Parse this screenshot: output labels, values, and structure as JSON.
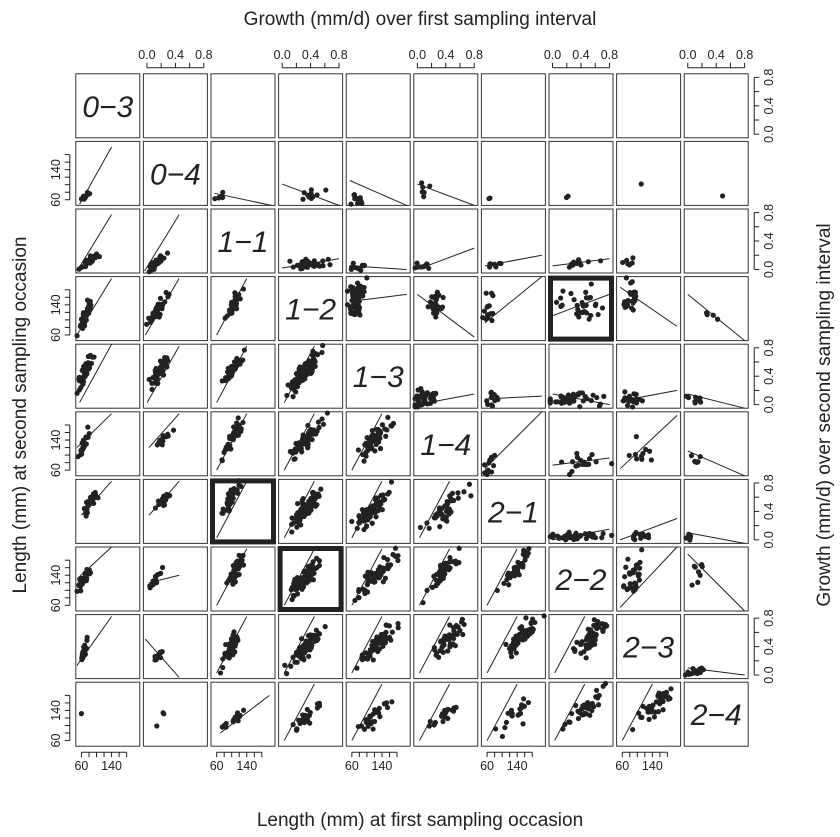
{
  "chart_data": {
    "type": "scatter",
    "title": "",
    "top_axis_title": "Growth (mm/d) over first sampling interval",
    "bottom_axis_title": "Length (mm) at first sampling occasion",
    "left_axis_title": "Length (mm) at second sampling occasion",
    "right_axis_title": "Growth (mm/d) over second sampling interval",
    "groups": [
      "0−3",
      "0−4",
      "1−1",
      "1−2",
      "1−3",
      "1−4",
      "2−1",
      "2−2",
      "2−3",
      "2−4"
    ],
    "length_axis": {
      "range": [
        45,
        215
      ],
      "ticks": [
        60,
        80,
        100,
        120,
        140,
        160,
        180
      ],
      "tick_labels": [
        "60",
        "140"
      ]
    },
    "growth_axis": {
      "range": [
        -0.05,
        0.85
      ],
      "ticks": [
        0.0,
        0.2,
        0.4,
        0.6,
        0.8
      ],
      "tick_labels": [
        "0.0",
        "0.4",
        "0.8"
      ]
    },
    "lower_triangle": "length at second occasion vs length at first occasion",
    "upper_triangle": "growth over second interval vs growth over first interval",
    "highlighted_panels": [
      {
        "row_group": "1−2",
        "col_group": "2−2"
      },
      {
        "row_group": "2−1",
        "col_group": "1−1"
      },
      {
        "row_group": "2−2",
        "col_group": "1−2"
      }
    ],
    "panels": [
      {
        "r": 1,
        "c": 0,
        "cx": 70,
        "cy": 70,
        "sx": 7,
        "sy": 7,
        "n": 12,
        "line": [
          55,
          48,
          140,
          200
        ]
      },
      {
        "r": 2,
        "c": 0,
        "cx": 80,
        "cy": 75,
        "sx": 12,
        "sy": 12,
        "n": 30,
        "line": [
          48,
          50,
          140,
          200
        ]
      },
      {
        "r": 2,
        "c": 1,
        "cx": 80,
        "cy": 74,
        "sx": 13,
        "sy": 13,
        "n": 40,
        "line": [
          48,
          50,
          140,
          200
        ]
      },
      {
        "r": 3,
        "c": 0,
        "cx": 72,
        "cy": 115,
        "sx": 10,
        "sy": 20,
        "n": 50,
        "line": [
          48,
          60,
          140,
          210
        ]
      },
      {
        "r": 3,
        "c": 1,
        "cx": 80,
        "cy": 120,
        "sx": 12,
        "sy": 18,
        "n": 45,
        "line": [
          50,
          60,
          140,
          210
        ]
      },
      {
        "r": 3,
        "c": 2,
        "cx": 105,
        "cy": 140,
        "sx": 12,
        "sy": 18,
        "n": 40,
        "line": [
          60,
          60,
          140,
          210
        ]
      },
      {
        "r": 4,
        "c": 0,
        "cx": 70,
        "cy": 140,
        "sx": 10,
        "sy": 25,
        "n": 45,
        "line": [
          55,
          60,
          140,
          215
        ]
      },
      {
        "r": 4,
        "c": 1,
        "cx": 85,
        "cy": 140,
        "sx": 12,
        "sy": 20,
        "n": 45,
        "line": [
          55,
          60,
          140,
          210
        ]
      },
      {
        "r": 4,
        "c": 2,
        "cx": 105,
        "cy": 150,
        "sx": 12,
        "sy": 15,
        "n": 55,
        "line": [
          60,
          60,
          140,
          210
        ]
      },
      {
        "r": 4,
        "c": 3,
        "cx": 115,
        "cy": 140,
        "sx": 20,
        "sy": 25,
        "n": 90,
        "line": [
          60,
          60,
          140,
          210
        ]
      },
      {
        "r": 5,
        "c": 0,
        "cx": 65,
        "cy": 125,
        "sx": 6,
        "sy": 15,
        "n": 25,
        "line": [
          48,
          120,
          140,
          210
        ]
      },
      {
        "r": 5,
        "c": 1,
        "cx": 95,
        "cy": 140,
        "sx": 10,
        "sy": 12,
        "n": 14,
        "line": [
          60,
          120,
          140,
          210
        ]
      },
      {
        "r": 5,
        "c": 2,
        "cx": 105,
        "cy": 150,
        "sx": 12,
        "sy": 25,
        "n": 40,
        "line": [
          60,
          60,
          140,
          210
        ]
      },
      {
        "r": 5,
        "c": 3,
        "cx": 115,
        "cy": 140,
        "sx": 20,
        "sy": 25,
        "n": 70,
        "line": [
          60,
          60,
          140,
          210
        ]
      },
      {
        "r": 5,
        "c": 4,
        "cx": 120,
        "cy": 140,
        "sx": 20,
        "sy": 25,
        "n": 60,
        "line": [
          60,
          60,
          140,
          210
        ]
      },
      {
        "r": 6,
        "c": 0,
        "cx": 80,
        "cy": 145,
        "sx": 12,
        "sy": 20,
        "n": 25,
        "line": [
          60,
          120,
          140,
          210
        ]
      },
      {
        "r": 6,
        "c": 1,
        "cx": 95,
        "cy": 155,
        "sx": 10,
        "sy": 12,
        "n": 20,
        "line": [
          60,
          120,
          140,
          210
        ]
      },
      {
        "r": 6,
        "c": 2,
        "cx": 95,
        "cy": 160,
        "sx": 12,
        "sy": 25,
        "n": 45,
        "line": [
          60,
          60,
          140,
          210
        ]
      },
      {
        "r": 6,
        "c": 3,
        "cx": 120,
        "cy": 140,
        "sx": 20,
        "sy": 25,
        "n": 85,
        "line": [
          60,
          60,
          140,
          210
        ]
      },
      {
        "r": 6,
        "c": 4,
        "cx": 120,
        "cy": 140,
        "sx": 20,
        "sy": 25,
        "n": 70,
        "line": [
          60,
          60,
          140,
          210
        ]
      },
      {
        "r": 6,
        "c": 5,
        "cx": 130,
        "cy": 140,
        "sx": 25,
        "sy": 30,
        "n": 40,
        "line": [
          60,
          60,
          140,
          210
        ]
      },
      {
        "r": 7,
        "c": 0,
        "cx": 70,
        "cy": 135,
        "sx": 10,
        "sy": 15,
        "n": 35,
        "line": [
          48,
          130,
          140,
          215
        ]
      },
      {
        "r": 7,
        "c": 1,
        "cx": 75,
        "cy": 125,
        "sx": 10,
        "sy": 15,
        "n": 12,
        "line": [
          60,
          120,
          140,
          140
        ]
      },
      {
        "r": 7,
        "c": 2,
        "cx": 110,
        "cy": 150,
        "sx": 12,
        "sy": 25,
        "n": 45,
        "line": [
          60,
          60,
          140,
          210
        ]
      },
      {
        "r": 7,
        "c": 3,
        "cx": 115,
        "cy": 135,
        "sx": 20,
        "sy": 25,
        "n": 80,
        "line": [
          60,
          60,
          140,
          210
        ]
      },
      {
        "r": 7,
        "c": 4,
        "cx": 125,
        "cy": 140,
        "sx": 22,
        "sy": 25,
        "n": 60,
        "line": [
          60,
          60,
          140,
          210
        ]
      },
      {
        "r": 7,
        "c": 5,
        "cx": 125,
        "cy": 150,
        "sx": 20,
        "sy": 25,
        "n": 45,
        "line": [
          60,
          60,
          140,
          210
        ]
      },
      {
        "r": 7,
        "c": 6,
        "cx": 140,
        "cy": 160,
        "sx": 20,
        "sy": 25,
        "n": 40,
        "line": [
          60,
          60,
          140,
          210
        ]
      },
      {
        "r": 8,
        "c": 0,
        "cx": 65,
        "cy": 110,
        "sx": 6,
        "sy": 15,
        "n": 20,
        "line": [
          48,
          80,
          140,
          210
        ]
      },
      {
        "r": 8,
        "c": 1,
        "cx": 85,
        "cy": 105,
        "sx": 8,
        "sy": 15,
        "n": 10,
        "line": [
          50,
          150,
          140,
          48
        ]
      },
      {
        "r": 8,
        "c": 2,
        "cx": 100,
        "cy": 130,
        "sx": 12,
        "sy": 25,
        "n": 50,
        "line": [
          60,
          60,
          140,
          210
        ]
      },
      {
        "r": 8,
        "c": 3,
        "cx": 120,
        "cy": 130,
        "sx": 20,
        "sy": 25,
        "n": 75,
        "line": [
          60,
          60,
          140,
          210
        ]
      },
      {
        "r": 8,
        "c": 4,
        "cx": 130,
        "cy": 140,
        "sx": 22,
        "sy": 25,
        "n": 65,
        "line": [
          60,
          60,
          140,
          210
        ]
      },
      {
        "r": 8,
        "c": 5,
        "cx": 140,
        "cy": 150,
        "sx": 22,
        "sy": 25,
        "n": 45,
        "line": [
          60,
          60,
          140,
          210
        ]
      },
      {
        "r": 8,
        "c": 6,
        "cx": 150,
        "cy": 155,
        "sx": 22,
        "sy": 25,
        "n": 55,
        "line": [
          60,
          60,
          140,
          210
        ]
      },
      {
        "r": 8,
        "c": 7,
        "cx": 160,
        "cy": 160,
        "sx": 25,
        "sy": 30,
        "n": 55,
        "line": [
          60,
          60,
          140,
          210
        ]
      },
      {
        "r": 9,
        "c": 0,
        "cx": 60,
        "cy": 130,
        "sx": 3,
        "sy": 3,
        "n": 1,
        "line": null
      },
      {
        "r": 9,
        "c": 1,
        "cx": 95,
        "cy": 125,
        "sx": 5,
        "sy": 10,
        "n": 3,
        "line": null
      },
      {
        "r": 9,
        "c": 2,
        "cx": 100,
        "cy": 110,
        "sx": 15,
        "sy": 15,
        "n": 15,
        "line": [
          70,
          80,
          200,
          180
        ]
      },
      {
        "r": 9,
        "c": 3,
        "cx": 115,
        "cy": 120,
        "sx": 20,
        "sy": 20,
        "n": 25,
        "line": [
          60,
          60,
          140,
          210
        ]
      },
      {
        "r": 9,
        "c": 4,
        "cx": 120,
        "cy": 125,
        "sx": 20,
        "sy": 20,
        "n": 25,
        "line": [
          60,
          60,
          140,
          210
        ]
      },
      {
        "r": 9,
        "c": 5,
        "cx": 130,
        "cy": 130,
        "sx": 20,
        "sy": 20,
        "n": 20,
        "line": [
          60,
          60,
          140,
          210
        ]
      },
      {
        "r": 9,
        "c": 6,
        "cx": 140,
        "cy": 135,
        "sx": 22,
        "sy": 22,
        "n": 20,
        "line": [
          60,
          60,
          140,
          210
        ]
      },
      {
        "r": 9,
        "c": 7,
        "cx": 150,
        "cy": 150,
        "sx": 25,
        "sy": 28,
        "n": 35,
        "line": [
          60,
          60,
          140,
          210
        ]
      },
      {
        "r": 9,
        "c": 8,
        "cx": 150,
        "cy": 150,
        "sx": 25,
        "sy": 28,
        "n": 35,
        "line": [
          60,
          60,
          140,
          210
        ]
      },
      {
        "r": 1,
        "c": 2,
        "cx": 0.05,
        "cy": 0.05,
        "sx": 0.05,
        "sy": 0.04,
        "n": 6,
        "line": [
          0.0,
          0.12,
          0.8,
          -0.05
        ]
      },
      {
        "r": 1,
        "c": 3,
        "cx": 0.45,
        "cy": 0.1,
        "sx": 0.1,
        "sy": 0.05,
        "n": 10,
        "line": [
          0.0,
          0.25,
          0.8,
          -0.05
        ]
      },
      {
        "r": 1,
        "c": 4,
        "cx": 0.1,
        "cy": 0.05,
        "sx": 0.06,
        "sy": 0.05,
        "n": 10,
        "line": [
          0.0,
          0.3,
          0.8,
          -0.05
        ]
      },
      {
        "r": 1,
        "c": 5,
        "cx": 0.1,
        "cy": 0.15,
        "sx": 0.06,
        "sy": 0.06,
        "n": 6,
        "line": [
          0.0,
          0.25,
          0.8,
          -0.05
        ]
      },
      {
        "r": 1,
        "c": 6,
        "cx": 0.05,
        "cy": 0.05,
        "sx": 0.02,
        "sy": 0.03,
        "n": 2,
        "line": null
      },
      {
        "r": 1,
        "c": 7,
        "cx": 0.2,
        "cy": 0.05,
        "sx": 0.02,
        "sy": 0.05,
        "n": 2,
        "line": null
      },
      {
        "r": 1,
        "c": 8,
        "cx": 0.3,
        "cy": 0.25,
        "sx": 0.01,
        "sy": 0.01,
        "n": 1,
        "line": null
      },
      {
        "r": 1,
        "c": 9,
        "cx": 0.5,
        "cy": 0.1,
        "sx": 0.01,
        "sy": 0.01,
        "n": 1,
        "line": null
      },
      {
        "r": 2,
        "c": 3,
        "cx": 0.4,
        "cy": 0.08,
        "sx": 0.15,
        "sy": 0.04,
        "n": 30,
        "line": [
          0.0,
          0.02,
          0.8,
          0.15
        ]
      },
      {
        "r": 2,
        "c": 4,
        "cx": 0.1,
        "cy": 0.05,
        "sx": 0.07,
        "sy": 0.03,
        "n": 12,
        "line": [
          0.0,
          0.05,
          0.8,
          0.0
        ]
      },
      {
        "r": 2,
        "c": 5,
        "cx": 0.1,
        "cy": 0.05,
        "sx": 0.06,
        "sy": 0.03,
        "n": 10,
        "line": [
          0.0,
          0.0,
          0.8,
          0.3
        ]
      },
      {
        "r": 2,
        "c": 6,
        "cx": 0.1,
        "cy": 0.08,
        "sx": 0.06,
        "sy": 0.03,
        "n": 8,
        "line": [
          0.0,
          0.05,
          0.8,
          0.2
        ]
      },
      {
        "r": 2,
        "c": 7,
        "cx": 0.4,
        "cy": 0.1,
        "sx": 0.15,
        "sy": 0.03,
        "n": 12,
        "line": [
          0.0,
          0.05,
          0.8,
          0.15
        ]
      },
      {
        "r": 2,
        "c": 8,
        "cx": 0.1,
        "cy": 0.1,
        "sx": 0.06,
        "sy": 0.04,
        "n": 6,
        "line": null
      },
      {
        "r": 3,
        "c": 4,
        "cx": 0.1,
        "cy": 0.55,
        "sx": 0.06,
        "sy": 0.12,
        "n": 60,
        "line": [
          0.0,
          0.5,
          0.8,
          0.6
        ]
      },
      {
        "r": 3,
        "c": 5,
        "cx": 0.25,
        "cy": 0.45,
        "sx": 0.06,
        "sy": 0.12,
        "n": 25,
        "line": [
          0.0,
          0.6,
          0.8,
          0.0
        ]
      },
      {
        "r": 3,
        "c": 6,
        "cx": 0.05,
        "cy": 0.45,
        "sx": 0.04,
        "sy": 0.12,
        "n": 15,
        "line": [
          0.0,
          0.2,
          0.8,
          0.85
        ]
      },
      {
        "r": 3,
        "c": 7,
        "cx": 0.4,
        "cy": 0.45,
        "sx": 0.15,
        "sy": 0.12,
        "n": 30,
        "line": [
          0.0,
          0.3,
          0.8,
          0.6
        ]
      },
      {
        "r": 3,
        "c": 8,
        "cx": 0.15,
        "cy": 0.55,
        "sx": 0.08,
        "sy": 0.1,
        "n": 25,
        "line": [
          0.0,
          0.7,
          0.8,
          0.15
        ]
      },
      {
        "r": 3,
        "c": 9,
        "cx": 0.3,
        "cy": 0.3,
        "sx": 0.05,
        "sy": 0.05,
        "n": 4,
        "line": [
          0.0,
          0.6,
          0.8,
          -0.05
        ]
      },
      {
        "r": 4,
        "c": 5,
        "cx": 0.1,
        "cy": 0.08,
        "sx": 0.1,
        "sy": 0.06,
        "n": 40,
        "line": [
          0.0,
          0.0,
          0.8,
          0.15
        ]
      },
      {
        "r": 4,
        "c": 6,
        "cx": 0.1,
        "cy": 0.1,
        "sx": 0.06,
        "sy": 0.06,
        "n": 12,
        "line": [
          0.0,
          0.08,
          0.8,
          0.12
        ]
      },
      {
        "r": 4,
        "c": 7,
        "cx": 0.35,
        "cy": 0.08,
        "sx": 0.2,
        "sy": 0.05,
        "n": 40,
        "line": [
          0.0,
          0.15,
          0.8,
          0.0
        ]
      },
      {
        "r": 4,
        "c": 8,
        "cx": 0.15,
        "cy": 0.08,
        "sx": 0.1,
        "sy": 0.05,
        "n": 25,
        "line": [
          0.0,
          0.05,
          0.8,
          0.2
        ]
      },
      {
        "r": 4,
        "c": 9,
        "cx": 0.1,
        "cy": 0.08,
        "sx": 0.05,
        "sy": 0.05,
        "n": 8,
        "line": [
          0.0,
          0.15,
          0.8,
          -0.05
        ]
      },
      {
        "r": 5,
        "c": 6,
        "cx": 0.05,
        "cy": 0.1,
        "sx": 0.04,
        "sy": 0.1,
        "n": 12,
        "line": [
          0.0,
          0.05,
          0.8,
          0.85
        ]
      },
      {
        "r": 5,
        "c": 7,
        "cx": 0.4,
        "cy": 0.15,
        "sx": 0.15,
        "sy": 0.08,
        "n": 20,
        "line": [
          0.0,
          0.1,
          0.8,
          0.2
        ]
      },
      {
        "r": 5,
        "c": 8,
        "cx": 0.3,
        "cy": 0.25,
        "sx": 0.12,
        "sy": 0.1,
        "n": 10,
        "line": [
          0.0,
          0.05,
          0.8,
          0.8
        ]
      },
      {
        "r": 5,
        "c": 9,
        "cx": 0.1,
        "cy": 0.15,
        "sx": 0.05,
        "sy": 0.05,
        "n": 6,
        "line": [
          0.0,
          0.3,
          0.8,
          -0.05
        ]
      },
      {
        "r": 6,
        "c": 7,
        "cx": 0.35,
        "cy": 0.05,
        "sx": 0.2,
        "sy": 0.03,
        "n": 40,
        "line": [
          0.0,
          0.0,
          0.8,
          0.15
        ]
      },
      {
        "r": 6,
        "c": 8,
        "cx": 0.2,
        "cy": 0.05,
        "sx": 0.1,
        "sy": 0.03,
        "n": 12,
        "line": [
          0.0,
          0.0,
          0.8,
          0.3
        ]
      },
      {
        "r": 6,
        "c": 9,
        "cx": 0.05,
        "cy": 0.05,
        "sx": 0.03,
        "sy": 0.03,
        "n": 5,
        "line": [
          0.0,
          0.1,
          0.8,
          -0.05
        ]
      },
      {
        "r": 7,
        "c": 8,
        "cx": 0.15,
        "cy": 0.4,
        "sx": 0.08,
        "sy": 0.18,
        "n": 30,
        "line": [
          0.0,
          0.0,
          0.8,
          0.85
        ]
      },
      {
        "r": 7,
        "c": 9,
        "cx": 0.15,
        "cy": 0.5,
        "sx": 0.06,
        "sy": 0.15,
        "n": 8,
        "line": [
          0.0,
          0.75,
          0.8,
          -0.05
        ]
      },
      {
        "r": 8,
        "c": 9,
        "cx": 0.1,
        "cy": 0.05,
        "sx": 0.08,
        "sy": 0.03,
        "n": 18,
        "line": [
          0.0,
          0.1,
          0.8,
          0.0
        ]
      }
    ]
  }
}
